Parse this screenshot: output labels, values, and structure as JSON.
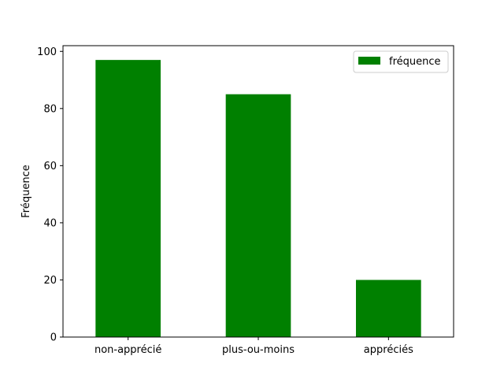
{
  "chart_data": {
    "type": "bar",
    "title": "",
    "xlabel": "",
    "ylabel": "Fréquence",
    "categories": [
      "non-apprécié",
      "plus-ou-moins",
      "appréciés"
    ],
    "series": [
      {
        "name": "fréquence",
        "values": [
          97,
          85,
          20
        ],
        "color": "#008000"
      }
    ],
    "ylim": [
      0,
      102
    ],
    "yticks": [
      0,
      20,
      40,
      60,
      80,
      100
    ],
    "grid": false,
    "legend_position": "top-right"
  }
}
